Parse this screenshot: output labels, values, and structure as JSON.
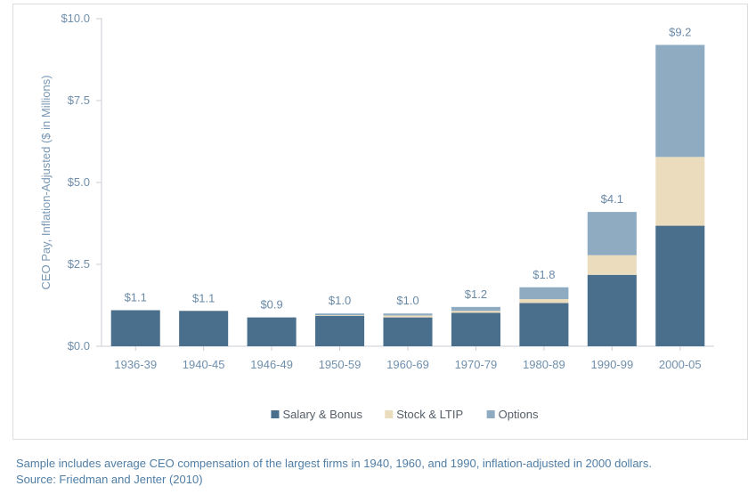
{
  "chart_data": {
    "type": "bar",
    "stacked": true,
    "categories": [
      "1936-39",
      "1940-45",
      "1946-49",
      "1950-59",
      "1960-69",
      "1970-79",
      "1980-89",
      "1990-99",
      "2000-05"
    ],
    "series": [
      {
        "name": "Salary & Bonus",
        "color": "#4a6f8d",
        "values": [
          1.1,
          1.08,
          0.88,
          0.93,
          0.88,
          1.02,
          1.32,
          2.18,
          3.68
        ]
      },
      {
        "name": "Stock & LTIP",
        "color": "#eadcbc",
        "values": [
          0.0,
          0.0,
          0.0,
          0.02,
          0.06,
          0.06,
          0.12,
          0.6,
          2.1
        ]
      },
      {
        "name": "Options",
        "color": "#8eabc2",
        "values": [
          0.0,
          0.0,
          0.0,
          0.05,
          0.06,
          0.12,
          0.36,
          1.32,
          3.42
        ]
      }
    ],
    "totals": [
      "$1.1",
      "$1.1",
      "$0.9",
      "$1.0",
      "$1.0",
      "$1.2",
      "$1.8",
      "$4.1",
      "$9.2"
    ],
    "ylabel": "CEO Pay, Inflation-Adjusted ($ in Millions)",
    "xlabel": "",
    "ylim": [
      0,
      10
    ],
    "yticks": [
      0,
      2.5,
      5,
      7.5,
      10
    ],
    "ytick_labels": [
      "$0.0",
      "$2.5",
      "$5.0",
      "$7.5",
      "$10.0"
    ],
    "grid": false,
    "legend_position": "bottom-center"
  },
  "caption": {
    "line1": "Sample includes average CEO compensation of the largest firms in 1940, 1960, and 1990, inflation-adjusted in 2000 dollars.",
    "line2": "Source: Friedman and Jenter (2010)"
  }
}
